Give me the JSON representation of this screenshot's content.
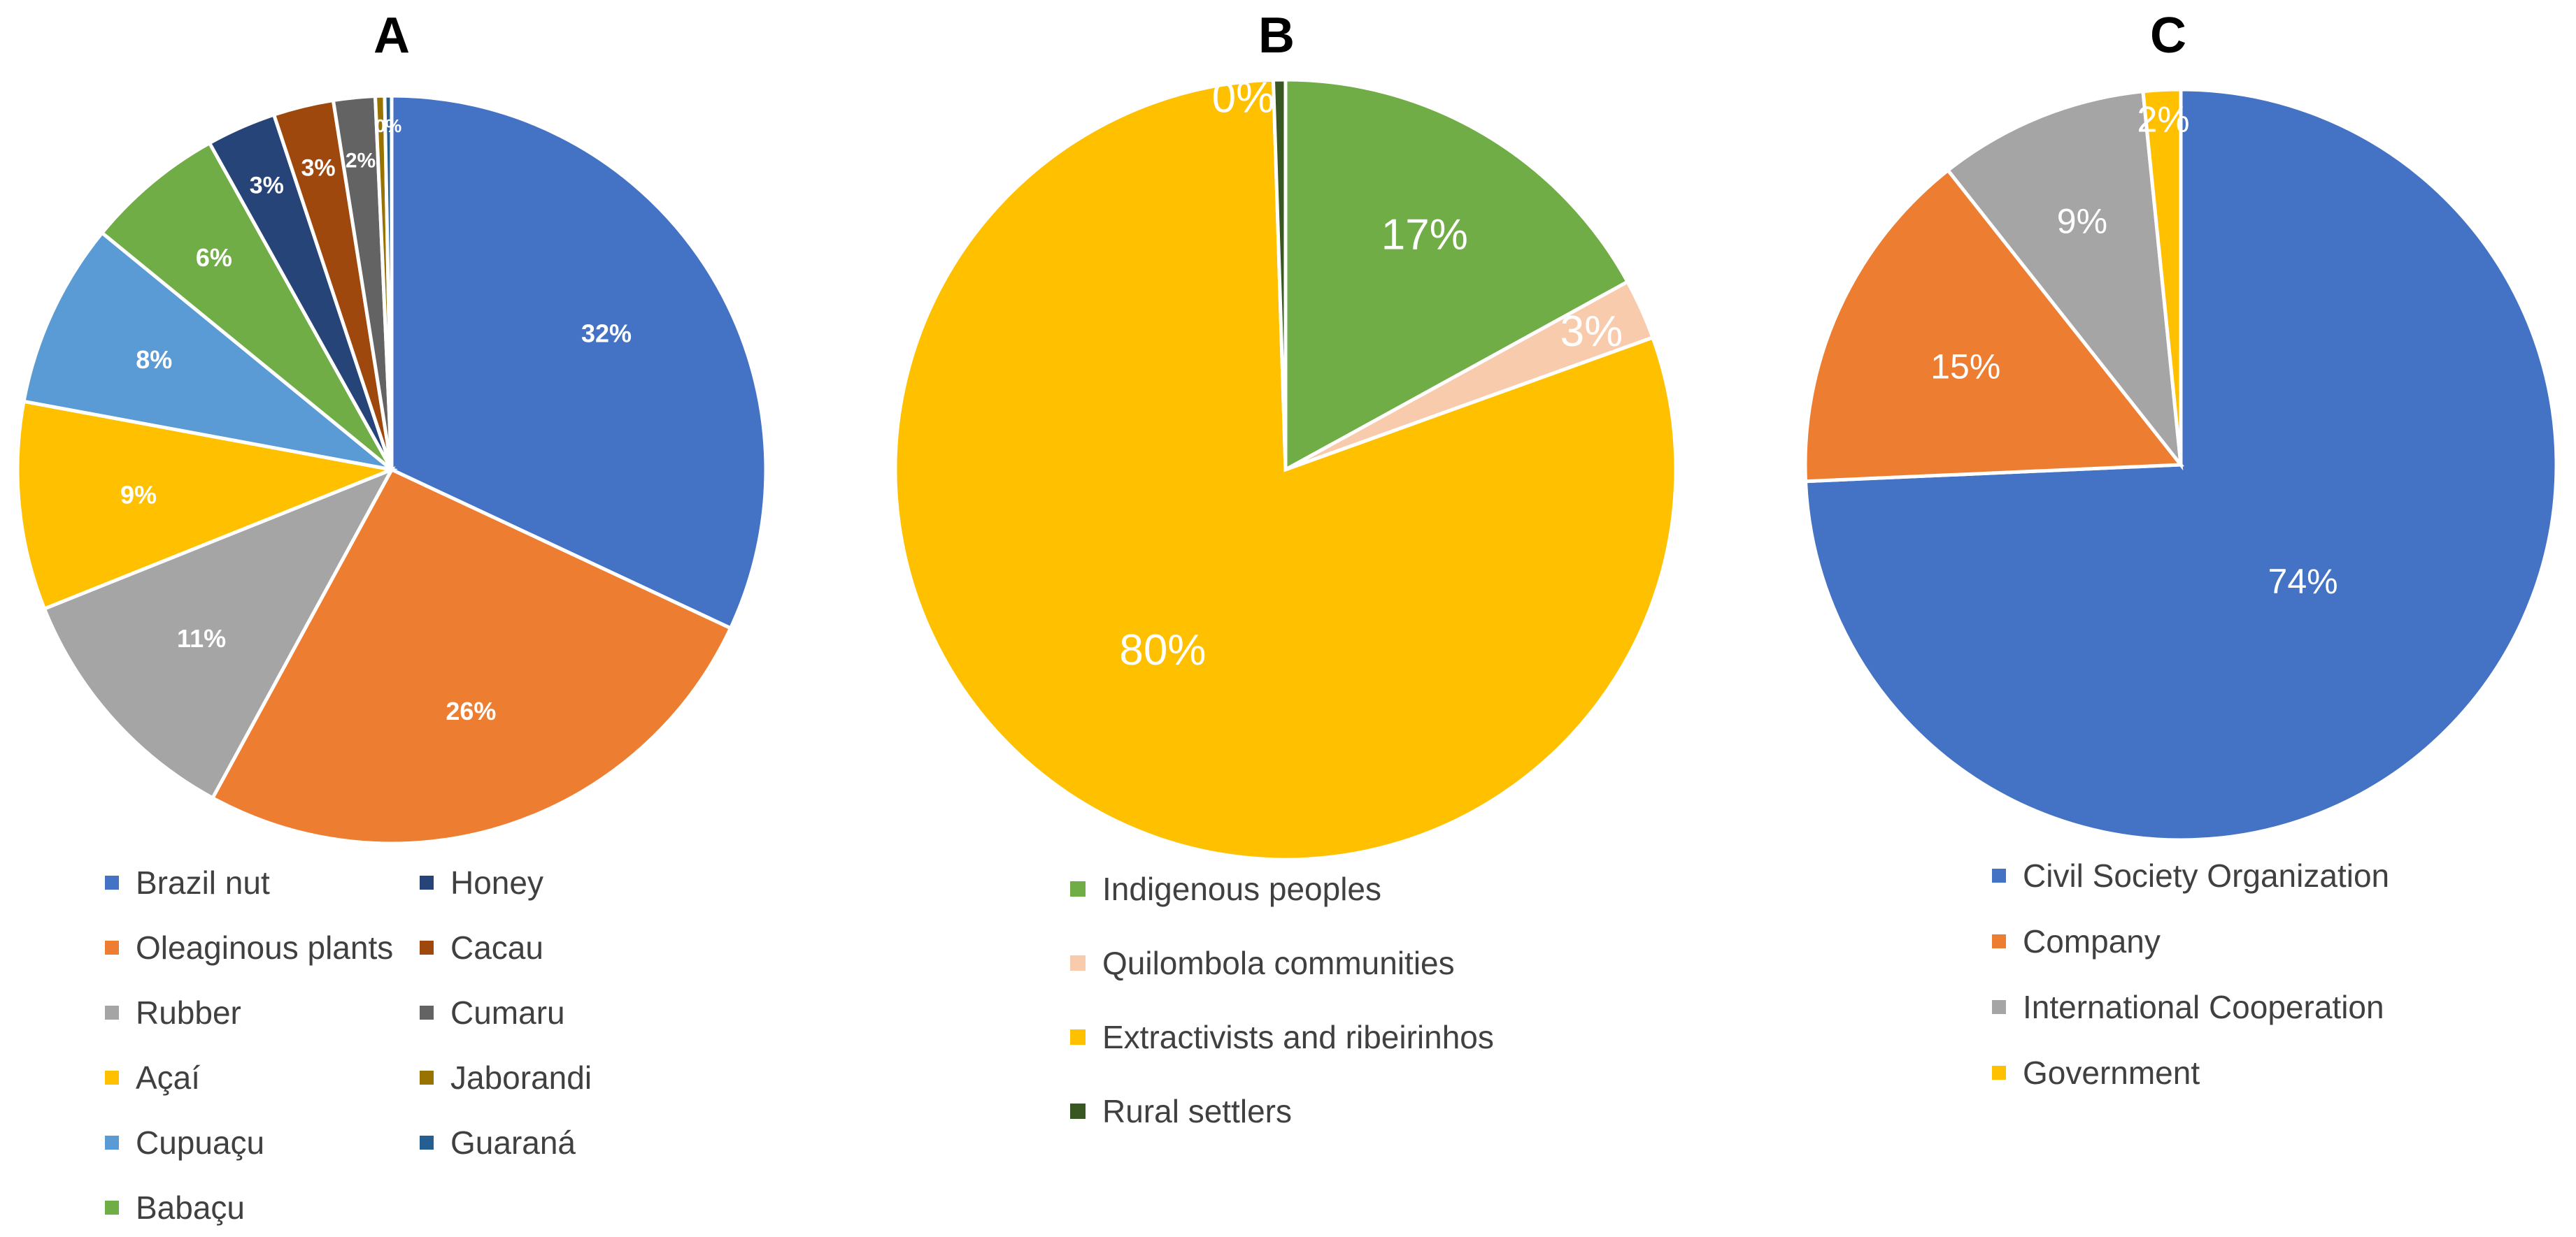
{
  "figure": {
    "panels": [
      "A",
      "B",
      "C"
    ]
  },
  "chart_data": [
    {
      "type": "pie",
      "panel": "A",
      "title": "A",
      "legend_position": "bottom",
      "slices": [
        {
          "label": "Brazil nut",
          "value": 32,
          "display": "32%",
          "color": "#4472C4"
        },
        {
          "label": "Oleaginous plants",
          "value": 26,
          "display": "26%",
          "color": "#ED7D31"
        },
        {
          "label": "Rubber",
          "value": 11,
          "display": "11%",
          "color": "#A5A5A5"
        },
        {
          "label": "Açaí",
          "value": 9,
          "display": "9%",
          "color": "#FFC000"
        },
        {
          "label": "Cupuaçu",
          "value": 8,
          "display": "8%",
          "color": "#5B9BD5"
        },
        {
          "label": "Babaçu",
          "value": 6,
          "display": "6%",
          "color": "#70AD47"
        },
        {
          "label": "Honey",
          "value": 3,
          "display": "3%",
          "color": "#264478"
        },
        {
          "label": "Cacau",
          "value": 2.6,
          "display": "3%",
          "color": "#9E480E"
        },
        {
          "label": "Cumaru",
          "value": 1.8,
          "display": "2%",
          "color": "#636363"
        },
        {
          "label": "Jaborandi",
          "value": 0.4,
          "display": "0%",
          "color": "#997300"
        },
        {
          "label": "Guaraná",
          "value": 0.3,
          "display": "0%",
          "color": "#255E91"
        }
      ]
    },
    {
      "type": "pie",
      "panel": "B",
      "title": "B",
      "legend_position": "bottom",
      "slices": [
        {
          "label": "Indigenous peoples",
          "value": 17,
          "display": "17%",
          "color": "#70AD47"
        },
        {
          "label": "Quilombola communities",
          "value": 2.5,
          "display": "3%",
          "color": "#F8CBAD"
        },
        {
          "label": "Extractivists and ribeirinhos",
          "value": 80,
          "display": "80%",
          "color": "#FFC000"
        },
        {
          "label": "Rural settlers",
          "value": 0.5,
          "display": "0%",
          "color": "#385723"
        }
      ]
    },
    {
      "type": "pie",
      "panel": "C",
      "title": "C",
      "legend_position": "bottom",
      "slices": [
        {
          "label": "Civil Society Organization",
          "value": 74,
          "display": "74%",
          "color": "#4472C4"
        },
        {
          "label": "Company",
          "value": 15,
          "display": "15%",
          "color": "#ED7D31"
        },
        {
          "label": "International Cooperation",
          "value": 9,
          "display": "9%",
          "color": "#A5A5A5"
        },
        {
          "label": "Government",
          "value": 1.6,
          "display": "2%",
          "color": "#FFC000"
        }
      ]
    }
  ]
}
